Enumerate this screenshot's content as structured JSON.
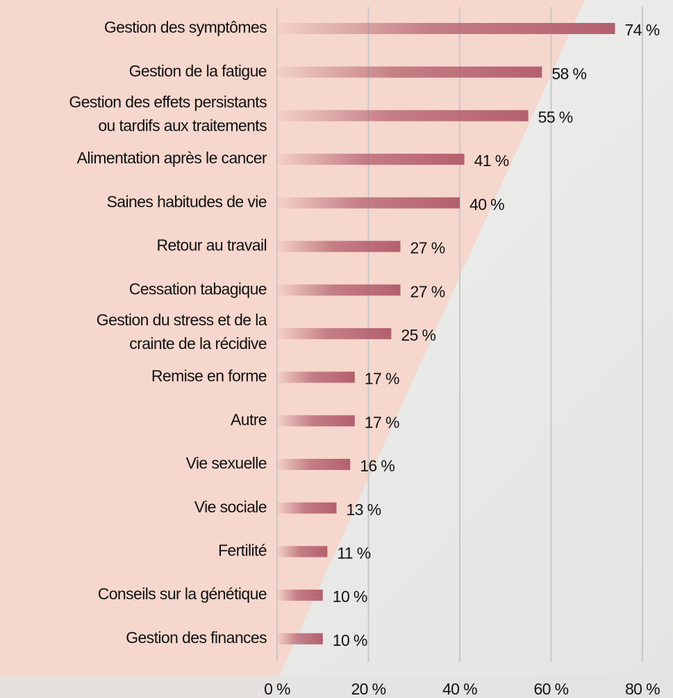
{
  "chart_data": {
    "type": "hbar",
    "categories": [
      "Gestion des symptômes",
      "Gestion de la fatigue",
      "Gestion des effets persistants ou tardifs aux traitements",
      "Alimentation après le cancer",
      "Saines habitudes de vie",
      "Retour au travail",
      "Cessation tabagique",
      "Gestion du stress et de la crainte de la récidive",
      "Remise en forme",
      "Autre",
      "Vie sexuelle",
      "Vie sociale",
      "Fertilité",
      "Conseils sur la génétique",
      "Gestion des finances"
    ],
    "values": [
      74,
      58,
      55,
      41,
      40,
      27,
      27,
      25,
      17,
      17,
      16,
      13,
      11,
      10,
      10
    ],
    "value_labels": [
      "74 %",
      "58 %",
      "55 %",
      "41 %",
      "40 %",
      "27 %",
      "27 %",
      "25 %",
      "17 %",
      "17 %",
      "16 %",
      "13 %",
      "11 %",
      "10 %",
      "10 %"
    ],
    "color": "#b4606e",
    "xlim": [
      0,
      80
    ],
    "xticks": [
      {
        "value": 0,
        "label": "0 %"
      },
      {
        "value": 20,
        "label": "20 %"
      },
      {
        "value": 40,
        "label": "40 %"
      },
      {
        "value": 60,
        "label": "60 %"
      },
      {
        "value": 80,
        "label": "80 %"
      }
    ],
    "grid": true
  }
}
